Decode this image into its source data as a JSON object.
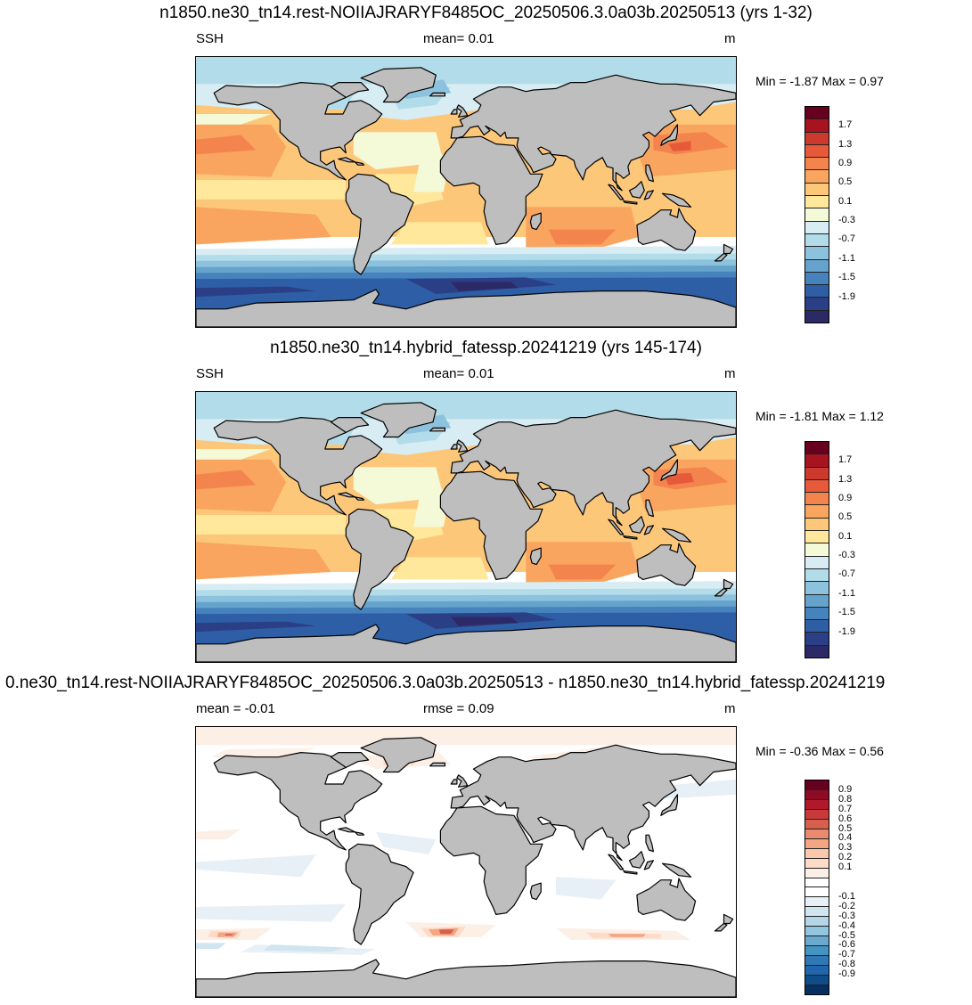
{
  "panels": [
    {
      "title": "n1850.ne30_tn14.rest-NOIIAJRARYF8485OC_20250506.3.0a03b.20250513 (yrs 1-32)",
      "left_label": "SSH",
      "mid_label": "mean=   0.01",
      "units": "m",
      "minmax": "Min =  -1.87 Max =   0.97",
      "colorbar": {
        "colors": [
          "#67001f",
          "#a7141f",
          "#cc3a2d",
          "#e65a3a",
          "#f4844d",
          "#f9a55f",
          "#fdc77a",
          "#ffe79b",
          "#f4f9d8",
          "#d7edf3",
          "#b3dcea",
          "#8cc2dd",
          "#66a3cc",
          "#4682bc",
          "#2e5ea5",
          "#2b3f87",
          "#2c2a66"
        ],
        "tick_labels": [
          "1.7",
          "1.3",
          "0.9",
          "0.5",
          "0.1",
          "-0.3",
          "-0.7",
          "-1.1",
          "-1.5",
          "-1.9"
        ]
      },
      "field": "ssh1"
    },
    {
      "title": "n1850.ne30_tn14.hybrid_fatessp.20241219 (yrs 145-174)",
      "left_label": "SSH",
      "mid_label": "mean=   0.01",
      "units": "m",
      "minmax": "Min =  -1.81 Max =   1.12",
      "colorbar": {
        "colors": [
          "#67001f",
          "#a7141f",
          "#cc3a2d",
          "#e65a3a",
          "#f4844d",
          "#f9a55f",
          "#fdc77a",
          "#ffe79b",
          "#f4f9d8",
          "#d7edf3",
          "#b3dcea",
          "#8cc2dd",
          "#66a3cc",
          "#4682bc",
          "#2e5ea5",
          "#2b3f87",
          "#2c2a66"
        ],
        "tick_labels": [
          "1.7",
          "1.3",
          "0.9",
          "0.5",
          "0.1",
          "-0.3",
          "-0.7",
          "-1.1",
          "-1.5",
          "-1.9"
        ]
      },
      "field": "ssh2"
    },
    {
      "title": "0.ne30_tn14.rest-NOIIAJRARYF8485OC_20250506.3.0a03b.20250513 - n1850.ne30_tn14.hybrid_fatessp.20241219",
      "left_label": "mean =  -0.01",
      "mid_label": "rmse =   0.09",
      "units": "m",
      "minmax": "Min =  -0.36 Max =   0.56",
      "colorbar": {
        "colors": [
          "#67001f",
          "#8e0b25",
          "#b2182b",
          "#c83a3a",
          "#d6604d",
          "#e88b6e",
          "#f4a582",
          "#f9c8ad",
          "#fddbc7",
          "#fcefe6",
          "#ffffff",
          "#ffffff",
          "#e7f0f6",
          "#d1e5f0",
          "#b5d6e8",
          "#92c5de",
          "#6ba9cf",
          "#4393c3",
          "#2f78b4",
          "#2166ac",
          "#0f4c8a",
          "#053061"
        ],
        "tick_labels": [
          "0.9",
          "0.8",
          "0.7",
          "0.6",
          "0.5",
          "0.4",
          "0.3",
          "0.2",
          "0.1",
          "-0.1",
          "-0.2",
          "-0.3",
          "-0.4",
          "-0.5",
          "-0.6",
          "-0.7",
          "-0.8",
          "-0.9"
        ]
      },
      "field": "diff"
    }
  ]
}
